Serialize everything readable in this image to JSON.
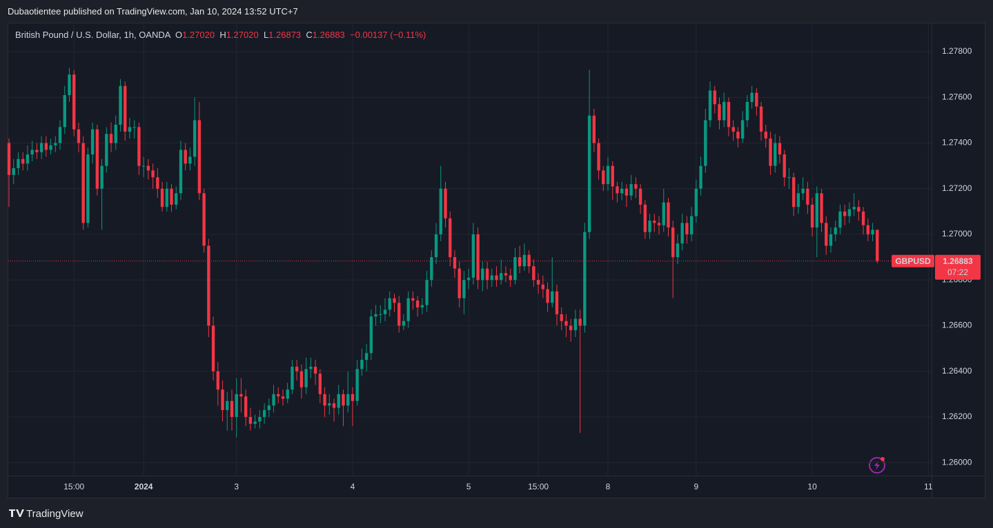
{
  "publisher_line": "Dubaotientee published on TradingView.com, Jan 10, 2024 13:52 UTC+7",
  "legend": {
    "title": "British Pound / U.S. Dollar, 1h, OANDA",
    "o_label": "O",
    "o": "1.27020",
    "h_label": "H",
    "h": "1.27020",
    "l_label": "L",
    "l": "1.26873",
    "c_label": "C",
    "c": "1.26883",
    "change": "−0.00137 (−0.11%)"
  },
  "footer": "TradingView",
  "chart_data": {
    "type": "candlestick",
    "symbol": "GBPUSD",
    "up_color": "#089981",
    "down_color": "#f23645",
    "grid": true,
    "last_price": {
      "value": 1.26883,
      "label": "1.26883"
    },
    "countdown": "07:22",
    "ylim": [
      1.25943,
      1.27927
    ],
    "yticks": [
      {
        "value": 1.26,
        "label": "1.26000"
      },
      {
        "value": 1.262,
        "label": "1.26200"
      },
      {
        "value": 1.264,
        "label": "1.26400"
      },
      {
        "value": 1.266,
        "label": "1.26600"
      },
      {
        "value": 1.268,
        "label": "1.26800"
      },
      {
        "value": 1.27,
        "label": "1.27000"
      },
      {
        "value": 1.272,
        "label": "1.27200"
      },
      {
        "value": 1.274,
        "label": "1.27400"
      },
      {
        "value": 1.276,
        "label": "1.27600"
      },
      {
        "value": 1.278,
        "label": "1.27800"
      }
    ],
    "xlim": [
      -0.15,
      198.7
    ],
    "xticks": [
      {
        "value": 14,
        "label": "15:00"
      },
      {
        "value": 29,
        "label": "2024"
      },
      {
        "value": 49,
        "label": "3"
      },
      {
        "value": 74,
        "label": "4"
      },
      {
        "value": 99,
        "label": "5"
      },
      {
        "value": 114,
        "label": "15:00"
      },
      {
        "value": 129,
        "label": "8"
      },
      {
        "value": 148,
        "label": "9"
      },
      {
        "value": 173,
        "label": "10"
      },
      {
        "value": 198,
        "label": "11"
      }
    ],
    "ohlc": [
      [
        1.274,
        1.2742,
        1.2712,
        1.2726
      ],
      [
        1.2726,
        1.2733,
        1.2722,
        1.2729
      ],
      [
        1.2729,
        1.2736,
        1.2726,
        1.2733
      ],
      [
        1.2733,
        1.2736,
        1.2728,
        1.2731
      ],
      [
        1.2731,
        1.2739,
        1.2728,
        1.2735
      ],
      [
        1.2735,
        1.2741,
        1.2732,
        1.2737
      ],
      [
        1.2737,
        1.274,
        1.2733,
        1.2736
      ],
      [
        1.2736,
        1.2743,
        1.2733,
        1.274
      ],
      [
        1.274,
        1.2743,
        1.2734,
        1.2737
      ],
      [
        1.2737,
        1.2742,
        1.2735,
        1.2739
      ],
      [
        1.2739,
        1.2743,
        1.2736,
        1.274
      ],
      [
        1.274,
        1.275,
        1.2737,
        1.2747
      ],
      [
        1.2747,
        1.2765,
        1.2744,
        1.2761
      ],
      [
        1.2761,
        1.2773,
        1.2758,
        1.277
      ],
      [
        1.277,
        1.2772,
        1.2743,
        1.2746
      ],
      [
        1.2746,
        1.2749,
        1.2736,
        1.274
      ],
      [
        1.274,
        1.2743,
        1.2702,
        1.2705
      ],
      [
        1.2705,
        1.2738,
        1.2703,
        1.2735
      ],
      [
        1.2735,
        1.2749,
        1.2731,
        1.2746
      ],
      [
        1.2746,
        1.2748,
        1.2717,
        1.272
      ],
      [
        1.272,
        1.2733,
        1.2702,
        1.273
      ],
      [
        1.273,
        1.2747,
        1.2727,
        1.2744
      ],
      [
        1.2744,
        1.2749,
        1.2736,
        1.274
      ],
      [
        1.274,
        1.2752,
        1.2737,
        1.2748
      ],
      [
        1.2748,
        1.2768,
        1.2745,
        1.2765
      ],
      [
        1.2765,
        1.2767,
        1.2741,
        1.2745
      ],
      [
        1.2745,
        1.2751,
        1.2742,
        1.2747
      ],
      [
        1.2747,
        1.275,
        1.2742,
        1.2747
      ],
      [
        1.2747,
        1.2749,
        1.2726,
        1.273
      ],
      [
        1.273,
        1.2734,
        1.2725,
        1.273
      ],
      [
        1.273,
        1.2733,
        1.2724,
        1.2728
      ],
      [
        1.2728,
        1.2731,
        1.272,
        1.2725
      ],
      [
        1.2725,
        1.2729,
        1.2716,
        1.272
      ],
      [
        1.272,
        1.2723,
        1.271,
        1.2712
      ],
      [
        1.2712,
        1.2723,
        1.271,
        1.272
      ],
      [
        1.272,
        1.2722,
        1.271,
        1.2713
      ],
      [
        1.2713,
        1.2721,
        1.2711,
        1.2718
      ],
      [
        1.2718,
        1.2741,
        1.2715,
        1.2737
      ],
      [
        1.2737,
        1.274,
        1.2728,
        1.2731
      ],
      [
        1.2731,
        1.2738,
        1.2728,
        1.2734
      ],
      [
        1.2734,
        1.276,
        1.273,
        1.275
      ],
      [
        1.275,
        1.2758,
        1.2715,
        1.2718
      ],
      [
        1.2718,
        1.272,
        1.2692,
        1.2695
      ],
      [
        1.2695,
        1.2698,
        1.2655,
        1.266
      ],
      [
        1.266,
        1.2664,
        1.2636,
        1.264
      ],
      [
        1.264,
        1.2644,
        1.2625,
        1.2632
      ],
      [
        1.2632,
        1.2636,
        1.2618,
        1.2623
      ],
      [
        1.2623,
        1.2631,
        1.2614,
        1.2627
      ],
      [
        1.2627,
        1.2632,
        1.2614,
        1.262
      ],
      [
        1.262,
        1.2637,
        1.2611,
        1.263
      ],
      [
        1.263,
        1.2637,
        1.2622,
        1.2629
      ],
      [
        1.2629,
        1.2632,
        1.2616,
        1.262
      ],
      [
        1.262,
        1.2624,
        1.2614,
        1.2617
      ],
      [
        1.2617,
        1.2621,
        1.2615,
        1.2618
      ],
      [
        1.2618,
        1.2623,
        1.2615,
        1.262
      ],
      [
        1.262,
        1.2626,
        1.2617,
        1.2623
      ],
      [
        1.2623,
        1.2628,
        1.262,
        1.2625
      ],
      [
        1.2625,
        1.2634,
        1.2622,
        1.263
      ],
      [
        1.263,
        1.2633,
        1.2626,
        1.2629
      ],
      [
        1.2629,
        1.2632,
        1.2625,
        1.2628
      ],
      [
        1.2628,
        1.2635,
        1.2626,
        1.2632
      ],
      [
        1.2632,
        1.2645,
        1.263,
        1.2642
      ],
      [
        1.2642,
        1.2645,
        1.2636,
        1.264
      ],
      [
        1.264,
        1.2643,
        1.2628,
        1.2633
      ],
      [
        1.2633,
        1.2646,
        1.263,
        1.2641
      ],
      [
        1.2641,
        1.2646,
        1.2637,
        1.2642
      ],
      [
        1.2642,
        1.2645,
        1.2634,
        1.2639
      ],
      [
        1.2639,
        1.2641,
        1.2626,
        1.263
      ],
      [
        1.263,
        1.2633,
        1.262,
        1.2625
      ],
      [
        1.2625,
        1.263,
        1.2621,
        1.2626
      ],
      [
        1.2626,
        1.2628,
        1.2618,
        1.2624
      ],
      [
        1.2624,
        1.2634,
        1.2621,
        1.263
      ],
      [
        1.263,
        1.2632,
        1.2616,
        1.2625
      ],
      [
        1.2625,
        1.264,
        1.2622,
        1.263
      ],
      [
        1.263,
        1.2633,
        1.2616,
        1.2627
      ],
      [
        1.2627,
        1.2645,
        1.2625,
        1.2641
      ],
      [
        1.2641,
        1.265,
        1.2638,
        1.2645
      ],
      [
        1.2645,
        1.2652,
        1.264,
        1.2648
      ],
      [
        1.2648,
        1.2667,
        1.2645,
        1.2664
      ],
      [
        1.2664,
        1.2669,
        1.266,
        1.2665
      ],
      [
        1.2665,
        1.2669,
        1.2661,
        1.2665
      ],
      [
        1.2665,
        1.2672,
        1.2662,
        1.2667
      ],
      [
        1.2667,
        1.2675,
        1.2664,
        1.2672
      ],
      [
        1.2672,
        1.2674,
        1.2666,
        1.267
      ],
      [
        1.267,
        1.2673,
        1.2657,
        1.266
      ],
      [
        1.266,
        1.2665,
        1.2658,
        1.2662
      ],
      [
        1.2662,
        1.2675,
        1.2659,
        1.2672
      ],
      [
        1.2672,
        1.2675,
        1.2667,
        1.2671
      ],
      [
        1.2671,
        1.2673,
        1.2664,
        1.2668
      ],
      [
        1.2668,
        1.2672,
        1.2665,
        1.2669
      ],
      [
        1.2669,
        1.2684,
        1.2666,
        1.268
      ],
      [
        1.268,
        1.2693,
        1.2677,
        1.269
      ],
      [
        1.269,
        1.2705,
        1.2687,
        1.27
      ],
      [
        1.27,
        1.273,
        1.2697,
        1.272
      ],
      [
        1.272,
        1.2723,
        1.2703,
        1.2707
      ],
      [
        1.2707,
        1.271,
        1.2686,
        1.269
      ],
      [
        1.269,
        1.2693,
        1.2681,
        1.2685
      ],
      [
        1.2685,
        1.2688,
        1.2668,
        1.2672
      ],
      [
        1.2672,
        1.2684,
        1.2665,
        1.268
      ],
      [
        1.268,
        1.2685,
        1.2676,
        1.2681
      ],
      [
        1.2681,
        1.2705,
        1.2678,
        1.27
      ],
      [
        1.27,
        1.2703,
        1.2676,
        1.268
      ],
      [
        1.268,
        1.2688,
        1.2675,
        1.2685
      ],
      [
        1.2685,
        1.2688,
        1.2676,
        1.268
      ],
      [
        1.268,
        1.2685,
        1.2677,
        1.2682
      ],
      [
        1.2682,
        1.2686,
        1.2677,
        1.268
      ],
      [
        1.268,
        1.2689,
        1.2678,
        1.2683
      ],
      [
        1.2683,
        1.2686,
        1.2679,
        1.2682
      ],
      [
        1.2682,
        1.2685,
        1.2677,
        1.268
      ],
      [
        1.268,
        1.2694,
        1.2678,
        1.269
      ],
      [
        1.269,
        1.2695,
        1.2683,
        1.2686
      ],
      [
        1.2686,
        1.2696,
        1.2684,
        1.2691
      ],
      [
        1.2691,
        1.2693,
        1.2683,
        1.2686
      ],
      [
        1.2686,
        1.2689,
        1.2677,
        1.268
      ],
      [
        1.268,
        1.2683,
        1.2674,
        1.2678
      ],
      [
        1.2678,
        1.2682,
        1.2672,
        1.2676
      ],
      [
        1.2676,
        1.2679,
        1.2666,
        1.267
      ],
      [
        1.267,
        1.269,
        1.2668,
        1.2675
      ],
      [
        1.2675,
        1.2678,
        1.266,
        1.2665
      ],
      [
        1.2665,
        1.2668,
        1.2658,
        1.2662
      ],
      [
        1.2662,
        1.2665,
        1.2655,
        1.266
      ],
      [
        1.266,
        1.2663,
        1.2653,
        1.2658
      ],
      [
        1.2658,
        1.2667,
        1.2655,
        1.2663
      ],
      [
        1.2663,
        1.2667,
        1.2613,
        1.266
      ],
      [
        1.266,
        1.2705,
        1.2657,
        1.2701
      ],
      [
        1.2701,
        1.2772,
        1.2698,
        1.2752
      ],
      [
        1.2752,
        1.2755,
        1.2736,
        1.274
      ],
      [
        1.274,
        1.2742,
        1.2724,
        1.2728
      ],
      [
        1.2728,
        1.273,
        1.2719,
        1.2722
      ],
      [
        1.2722,
        1.2734,
        1.2719,
        1.273
      ],
      [
        1.273,
        1.2732,
        1.2715,
        1.2721
      ],
      [
        1.2721,
        1.2723,
        1.2714,
        1.2718
      ],
      [
        1.2718,
        1.2723,
        1.2715,
        1.272
      ],
      [
        1.272,
        1.2722,
        1.2712,
        1.2717
      ],
      [
        1.2717,
        1.2726,
        1.2715,
        1.2722
      ],
      [
        1.2722,
        1.2725,
        1.2716,
        1.272
      ],
      [
        1.272,
        1.2722,
        1.2709,
        1.2713
      ],
      [
        1.2713,
        1.2715,
        1.2698,
        1.2701
      ],
      [
        1.2701,
        1.2709,
        1.2698,
        1.2706
      ],
      [
        1.2706,
        1.2709,
        1.2701,
        1.2705
      ],
      [
        1.2705,
        1.2708,
        1.27,
        1.2704
      ],
      [
        1.2704,
        1.272,
        1.2701,
        1.2714
      ],
      [
        1.2714,
        1.2716,
        1.2699,
        1.2703
      ],
      [
        1.2703,
        1.2706,
        1.2672,
        1.269
      ],
      [
        1.269,
        1.27,
        1.2687,
        1.2696
      ],
      [
        1.2696,
        1.2709,
        1.2693,
        1.2705
      ],
      [
        1.2705,
        1.2708,
        1.2696,
        1.27
      ],
      [
        1.27,
        1.2712,
        1.2697,
        1.2708
      ],
      [
        1.2708,
        1.2724,
        1.2705,
        1.272
      ],
      [
        1.272,
        1.2734,
        1.2717,
        1.273
      ],
      [
        1.273,
        1.2755,
        1.2727,
        1.275
      ],
      [
        1.275,
        1.2767,
        1.2747,
        1.2763
      ],
      [
        1.2763,
        1.2765,
        1.2753,
        1.2757
      ],
      [
        1.2757,
        1.276,
        1.2746,
        1.275
      ],
      [
        1.275,
        1.2762,
        1.2747,
        1.2758
      ],
      [
        1.2758,
        1.276,
        1.2743,
        1.2747
      ],
      [
        1.2747,
        1.275,
        1.2741,
        1.2745
      ],
      [
        1.2745,
        1.2747,
        1.2738,
        1.2742
      ],
      [
        1.2742,
        1.2754,
        1.274,
        1.275
      ],
      [
        1.275,
        1.2761,
        1.2747,
        1.2758
      ],
      [
        1.2758,
        1.2765,
        1.2755,
        1.2762
      ],
      [
        1.2762,
        1.2764,
        1.2752,
        1.2756
      ],
      [
        1.2756,
        1.2758,
        1.2741,
        1.2745
      ],
      [
        1.2745,
        1.2748,
        1.2738,
        1.2742
      ],
      [
        1.2742,
        1.2745,
        1.2726,
        1.273
      ],
      [
        1.273,
        1.2744,
        1.2727,
        1.274
      ],
      [
        1.274,
        1.2743,
        1.2731,
        1.2735
      ],
      [
        1.2735,
        1.2737,
        1.2721,
        1.2725
      ],
      [
        1.2725,
        1.2729,
        1.272,
        1.2725
      ],
      [
        1.2725,
        1.2727,
        1.2708,
        1.2712
      ],
      [
        1.2712,
        1.2722,
        1.2709,
        1.2718
      ],
      [
        1.2718,
        1.2725,
        1.2715,
        1.272
      ],
      [
        1.272,
        1.2723,
        1.2709,
        1.2713
      ],
      [
        1.2713,
        1.2716,
        1.2699,
        1.2703
      ],
      [
        1.2703,
        1.2721,
        1.269,
        1.2718
      ],
      [
        1.2718,
        1.272,
        1.2701,
        1.2705
      ],
      [
        1.2705,
        1.2708,
        1.2691,
        1.2695
      ],
      [
        1.2695,
        1.2703,
        1.2692,
        1.27
      ],
      [
        1.27,
        1.2706,
        1.2697,
        1.2703
      ],
      [
        1.2703,
        1.2713,
        1.27,
        1.271
      ],
      [
        1.271,
        1.2713,
        1.2704,
        1.2708
      ],
      [
        1.2708,
        1.2714,
        1.2705,
        1.2711
      ],
      [
        1.2711,
        1.2718,
        1.2708,
        1.2712
      ],
      [
        1.2712,
        1.2715,
        1.2706,
        1.271
      ],
      [
        1.271,
        1.2712,
        1.27,
        1.2704
      ],
      [
        1.2704,
        1.2707,
        1.2697,
        1.27
      ],
      [
        1.27,
        1.2705,
        1.2697,
        1.2702
      ],
      [
        1.2702,
        1.2702,
        1.26873,
        1.26883
      ]
    ]
  }
}
